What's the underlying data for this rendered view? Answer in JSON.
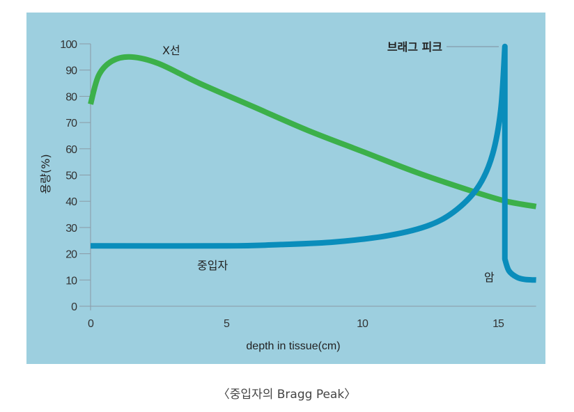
{
  "chart_data": {
    "type": "line",
    "title": "",
    "xlabel": "depth in tissue(cm)",
    "ylabel": "용량(%)",
    "xlim": [
      0,
      16.4
    ],
    "ylim": [
      0,
      100
    ],
    "xticks": [
      0,
      5,
      10,
      15
    ],
    "yticks": [
      0,
      10,
      20,
      30,
      40,
      50,
      60,
      70,
      80,
      90,
      100
    ],
    "grid": false,
    "series": [
      {
        "name": "X선",
        "color": "#3cb04a",
        "x": [
          0,
          0.3,
          0.8,
          1.5,
          2.5,
          4,
          6,
          8,
          10,
          12,
          14,
          15.3,
          16.4
        ],
        "y": [
          77,
          88,
          93.5,
          95,
          92.5,
          85,
          76,
          67,
          59,
          51,
          44,
          40,
          38
        ]
      },
      {
        "name": "중입자",
        "color": "#0a8dbb",
        "x": [
          0,
          5,
          7,
          9,
          11,
          12.5,
          13.5,
          14.3,
          14.8,
          15.1,
          15.25,
          15.25,
          15.4,
          15.7,
          16.0,
          16.4
        ],
        "y": [
          23,
          23,
          23.5,
          24.5,
          27,
          31,
          37,
          46,
          58,
          75,
          99,
          18,
          13.5,
          11,
          10.2,
          10
        ]
      }
    ],
    "annotations": [
      {
        "text": "브래그 피크",
        "x": 15.25,
        "y": 99
      },
      {
        "text": "암",
        "x": 14.9,
        "y": 11
      }
    ]
  },
  "caption": "〈중입자의 Bragg Peak〉"
}
